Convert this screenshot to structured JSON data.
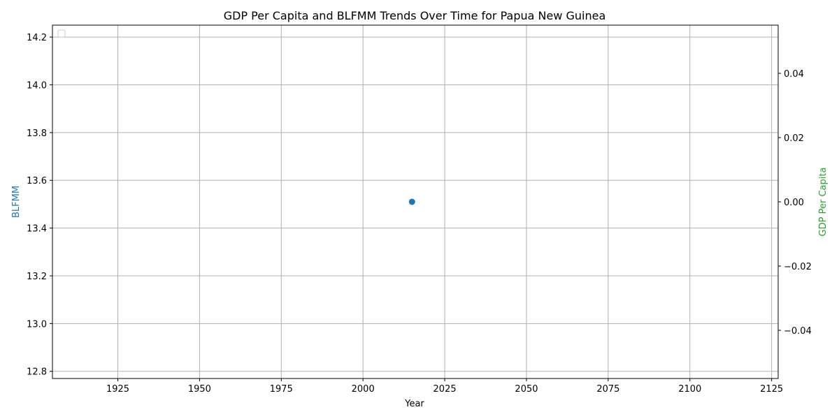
{
  "chart_data": {
    "type": "scatter",
    "title": "GDP Per Capita and BLFMM Trends Over Time for Papua New Guinea",
    "xlabel": "Year",
    "ylabel_left": "BLFMM",
    "ylabel_right": "GDP Per Capita",
    "xlim": [
      1905,
      2127
    ],
    "ylim_left": [
      12.77,
      14.25
    ],
    "ylim_right": [
      -0.055,
      0.055
    ],
    "x_ticks": [
      1925,
      1950,
      1975,
      2000,
      2025,
      2050,
      2075,
      2100,
      2125
    ],
    "y_ticks_left": [
      12.8,
      13.0,
      13.2,
      13.4,
      13.6,
      13.8,
      14.0,
      14.2
    ],
    "y_ticks_right": [
      -0.04,
      -0.02,
      0.0,
      0.02,
      0.04
    ],
    "y_tick_labels_left": [
      "12.8",
      "13.0",
      "13.2",
      "13.4",
      "13.6",
      "13.8",
      "14.0",
      "14.2"
    ],
    "y_tick_labels_right": [
      "−0.04",
      "−0.02",
      "0.00",
      "0.02",
      "0.04"
    ],
    "series": [
      {
        "axis": "left",
        "color": "#1f77b4",
        "points": [
          {
            "x": 2015,
            "y": 13.51
          }
        ]
      }
    ],
    "grid": true,
    "legend": "top-left (empty)",
    "colors": {
      "left_axis_label": "#1f77b4",
      "right_axis_label": "#2ca02c",
      "grid": "#b0b0b0"
    }
  }
}
